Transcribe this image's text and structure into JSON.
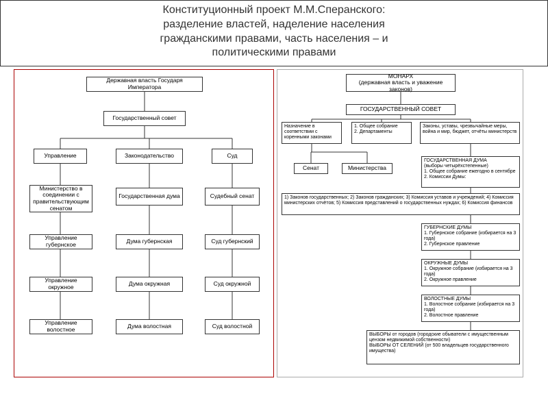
{
  "header": {
    "line1": "Конституционный проект М.М.Сперанского:",
    "line2": "разделение властей, наделение населения",
    "line3": "гражданскими правами, часть населения – и",
    "line4": "политическими правами"
  },
  "left": {
    "border_color": "#a00000",
    "bg": "#ffffff",
    "node_border": "#333333",
    "font": 8.5,
    "nodes": {
      "n1": "Державная власть Государя Императора",
      "n2": "Государственный совет",
      "n3": "Управление",
      "n4": "Законодательство",
      "n5": "Суд",
      "n6": "Министерство в соединении с правительствующим сенатом",
      "n7": "Государственная дума",
      "n8": "Судебный сенат",
      "n9": "Управление губернское",
      "n10": "Дума губернская",
      "n11": "Суд губернский",
      "n12": "Управление окружное",
      "n13": "Дума окружная",
      "n14": "Суд окружной",
      "n15": "Управление волостное",
      "n16": "Дума волостная",
      "n17": "Суд волостной"
    },
    "layout": {
      "n1": [
        105,
        10,
        170,
        22
      ],
      "n2": [
        130,
        60,
        120,
        22
      ],
      "n3": [
        28,
        115,
        78,
        22
      ],
      "n4": [
        148,
        115,
        98,
        22
      ],
      "n5": [
        288,
        115,
        60,
        22
      ],
      "n6": [
        22,
        168,
        92,
        40
      ],
      "n7": [
        148,
        172,
        98,
        26
      ],
      "n8": [
        278,
        172,
        80,
        26
      ],
      "n9": [
        22,
        240,
        92,
        22
      ],
      "n10": [
        148,
        240,
        98,
        22
      ],
      "n11": [
        278,
        240,
        80,
        22
      ],
      "n12": [
        22,
        302,
        92,
        22
      ],
      "n13": [
        148,
        302,
        98,
        22
      ],
      "n14": [
        278,
        302,
        80,
        22
      ],
      "n15": [
        22,
        364,
        92,
        22
      ],
      "n16": [
        148,
        364,
        98,
        22
      ],
      "n17": [
        278,
        364,
        80,
        22
      ]
    },
    "edges": [
      [
        190,
        32,
        190,
        60
      ],
      [
        190,
        82,
        190,
        100
      ],
      [
        67,
        100,
        318,
        100
      ],
      [
        67,
        100,
        67,
        115
      ],
      [
        197,
        100,
        197,
        115
      ],
      [
        318,
        100,
        318,
        115
      ],
      [
        67,
        137,
        67,
        168
      ],
      [
        197,
        137,
        197,
        172
      ],
      [
        318,
        137,
        318,
        172
      ],
      [
        67,
        208,
        67,
        240
      ],
      [
        197,
        198,
        197,
        240
      ],
      [
        318,
        198,
        318,
        240
      ],
      [
        67,
        262,
        67,
        302
      ],
      [
        197,
        262,
        197,
        302
      ],
      [
        318,
        262,
        318,
        302
      ],
      [
        67,
        324,
        67,
        364
      ],
      [
        197,
        324,
        197,
        364
      ],
      [
        318,
        324,
        318,
        364
      ]
    ]
  },
  "right": {
    "border_color": "#999999",
    "nodes": {
      "r1": "МОНАРХ\n(державная власть и уважение законов)",
      "r2": "ГОСУДАРСТВЕННЫЙ СОВЕТ",
      "r3": "Назначение в соответствии с коренными законами",
      "r4": "1. Общее собрание\n2. Департаменты",
      "r5": "Законы, уставы, чрезвычайные меры, война и мир, бюджет, отчёты министерств",
      "r6": "Сенат",
      "r7": "Министерства",
      "r8": "ГОСУДАРСТВЕННАЯ ДУМА\n(выборы четырёхстепенные)\n1. Общее собрание ежегодно в сентябре\n2. Комиссии Думы:",
      "r9": "1) Законов государственных; 2) Законов гражданских; 3) Комиссия уставов и учреждений; 4) Комиссия министерских отчётов; 5) Комиссия представлений о государственных нуждах; 6) Комиссия финансов",
      "r10": "ГУБЕРНСКИЕ ДУМЫ\n1. Губернское собрание (избирается на 3 года)\n2. Губернское правление",
      "r11": "ОКРУЖНЫЕ ДУМЫ\n1. Окружное собрание (избирается на 3 года)\n2. Окружное правление",
      "r12": "ВОЛОСТНЫЕ ДУМЫ\n1. Волостное собрание (избирается на 3 года)\n2. Волостное правление",
      "r13": "ВЫБОРЫ от городов (городские обыватели с имущественным цензом недвижимой собственности)\nВЫБОРЫ ОТ СЕЛЕНИЙ (от 500 владельцев государственного имущества)"
    },
    "layout": {
      "r1": [
        100,
        6,
        160,
        26
      ],
      "r2": [
        100,
        50,
        160,
        16
      ],
      "r3": [
        6,
        76,
        88,
        32
      ],
      "r4": [
        108,
        76,
        88,
        32
      ],
      "r5": [
        208,
        76,
        146,
        32
      ],
      "r6": [
        24,
        136,
        50,
        16
      ],
      "r7": [
        94,
        136,
        74,
        16
      ],
      "r8": [
        210,
        126,
        144,
        46
      ],
      "r9": [
        6,
        180,
        348,
        32
      ],
      "r10": [
        210,
        224,
        144,
        40
      ],
      "r11": [
        210,
        276,
        144,
        40
      ],
      "r12": [
        210,
        328,
        144,
        40
      ],
      "r13": [
        130,
        380,
        224,
        50
      ]
    },
    "edges": [
      [
        180,
        32,
        180,
        50
      ],
      [
        180,
        66,
        180,
        72
      ],
      [
        50,
        72,
        282,
        72
      ],
      [
        50,
        72,
        50,
        76
      ],
      [
        152,
        72,
        152,
        76
      ],
      [
        282,
        72,
        282,
        76
      ],
      [
        50,
        108,
        50,
        120
      ],
      [
        49,
        120,
        131,
        120
      ],
      [
        49,
        120,
        49,
        136
      ],
      [
        131,
        120,
        131,
        136
      ],
      [
        282,
        108,
        282,
        126
      ],
      [
        282,
        172,
        282,
        180
      ],
      [
        282,
        212,
        282,
        224
      ],
      [
        282,
        264,
        282,
        276
      ],
      [
        282,
        316,
        282,
        328
      ],
      [
        282,
        368,
        282,
        380
      ]
    ]
  }
}
